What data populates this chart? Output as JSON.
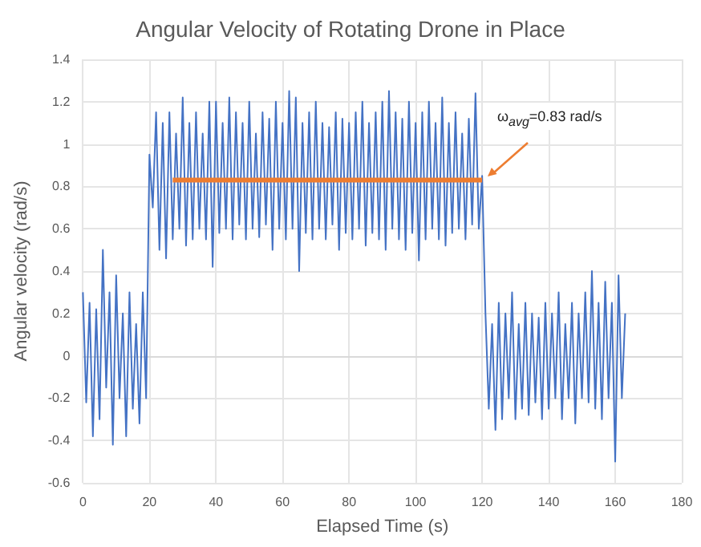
{
  "chart_data": {
    "type": "line",
    "title": "Angular Velocity of Rotating Drone in Place",
    "xlabel": "Elapsed Time (s)",
    "ylabel": "Angular velocity (rad/s)",
    "xlim": [
      0,
      180
    ],
    "xticks": [
      0,
      20,
      40,
      60,
      80,
      100,
      120,
      140,
      160,
      180
    ],
    "ylim": [
      -0.6,
      1.4
    ],
    "yticks": [
      -0.6,
      -0.4,
      -0.2,
      0,
      0.2,
      0.4,
      0.6,
      0.8,
      1,
      1.2,
      1.4
    ],
    "grid": true,
    "marker": "none",
    "line_style": "solid",
    "annotations": [
      "ω$_{avg}$=0.83 rad/s"
    ],
    "series": [
      {
        "color": "#4472c4",
        "x": [
          0,
          1,
          2,
          3,
          4,
          5,
          6,
          7,
          8,
          9,
          10,
          11,
          12,
          13,
          14,
          15,
          16,
          17,
          18,
          19,
          20,
          21,
          22,
          23,
          24,
          25,
          26,
          27,
          28,
          29,
          30,
          31,
          32,
          33,
          34,
          35,
          36,
          37,
          38,
          39,
          40,
          41,
          42,
          43,
          44,
          45,
          46,
          47,
          48,
          49,
          50,
          51,
          52,
          53,
          54,
          55,
          56,
          57,
          58,
          59,
          60,
          61,
          62,
          63,
          64,
          65,
          66,
          67,
          68,
          69,
          70,
          71,
          72,
          73,
          74,
          75,
          76,
          77,
          78,
          79,
          80,
          81,
          82,
          83,
          84,
          85,
          86,
          87,
          88,
          89,
          90,
          91,
          92,
          93,
          94,
          95,
          96,
          97,
          98,
          99,
          100,
          101,
          102,
          103,
          104,
          105,
          106,
          107,
          108,
          109,
          110,
          111,
          112,
          113,
          114,
          115,
          116,
          117,
          118,
          119,
          120,
          121,
          122,
          123,
          124,
          125,
          126,
          127,
          128,
          129,
          130,
          131,
          132,
          133,
          134,
          135,
          136,
          137,
          138,
          139,
          140,
          141,
          142,
          143,
          144,
          145,
          146,
          147,
          148,
          149,
          150,
          151,
          152,
          153,
          154,
          155,
          156,
          157,
          158,
          159,
          160,
          161,
          162,
          163
        ],
        "values": [
          0.3,
          -0.22,
          0.25,
          -0.38,
          0.22,
          -0.3,
          0.5,
          -0.15,
          0.3,
          -0.42,
          0.38,
          -0.2,
          0.2,
          -0.38,
          0.3,
          -0.25,
          0.15,
          -0.32,
          0.3,
          -0.2,
          0.95,
          0.7,
          1.15,
          0.5,
          1.1,
          0.46,
          1.15,
          0.55,
          1.05,
          0.6,
          1.22,
          0.52,
          1.1,
          0.55,
          1.15,
          0.6,
          1.05,
          0.55,
          1.2,
          0.42,
          1.2,
          0.58,
          1.1,
          0.6,
          1.22,
          0.55,
          1.15,
          0.62,
          1.1,
          0.55,
          1.2,
          0.6,
          1.05,
          0.56,
          1.15,
          0.62,
          1.12,
          0.5,
          1.2,
          0.6,
          1.1,
          0.55,
          1.25,
          0.6,
          1.22,
          0.4,
          1.1,
          0.58,
          1.15,
          0.55,
          1.2,
          0.6,
          1.1,
          0.55,
          1.08,
          0.62,
          1.15,
          0.5,
          1.12,
          0.58,
          1.1,
          0.55,
          1.15,
          0.6,
          1.2,
          0.52,
          1.1,
          0.58,
          1.15,
          0.55,
          1.2,
          0.5,
          1.25,
          0.6,
          1.15,
          0.55,
          1.12,
          0.5,
          1.2,
          0.58,
          1.1,
          0.45,
          1.15,
          0.55,
          1.2,
          0.6,
          1.1,
          0.55,
          1.22,
          0.52,
          1.1,
          0.58,
          1.15,
          0.6,
          1.05,
          0.55,
          1.12,
          0.62,
          1.24,
          0.6,
          0.85,
          0.2,
          -0.25,
          0.15,
          -0.35,
          0.25,
          -0.3,
          0.2,
          -0.2,
          0.3,
          -0.3,
          0.15,
          -0.25,
          0.25,
          -0.28,
          0.2,
          -0.22,
          0.18,
          -0.3,
          0.25,
          -0.25,
          0.2,
          -0.2,
          0.3,
          -0.3,
          0.15,
          -0.2,
          0.25,
          -0.32,
          0.2,
          -0.2,
          0.3,
          -0.22,
          0.4,
          -0.25,
          0.25,
          -0.3,
          0.35,
          -0.2,
          0.25,
          -0.5,
          0.38,
          -0.2,
          0.2
        ]
      },
      {
        "color": "#ed7d31",
        "x": [
          27,
          120
        ],
        "values": [
          0.83,
          0.83
        ]
      }
    ]
  }
}
